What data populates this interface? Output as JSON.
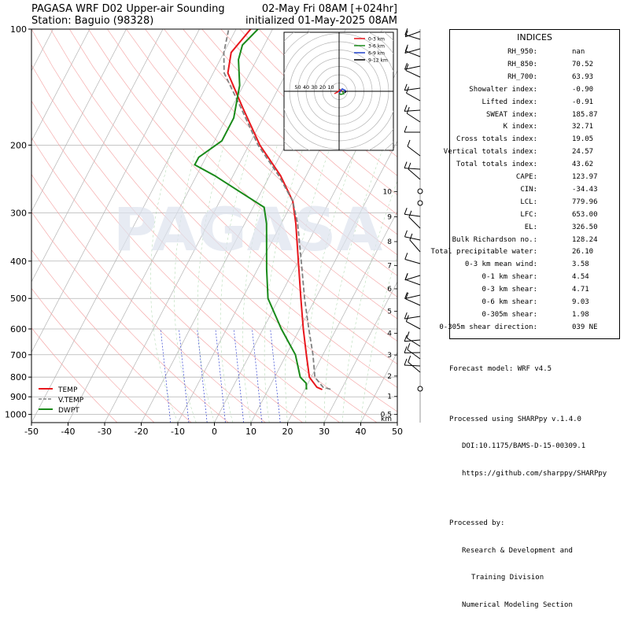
{
  "header": {
    "title_line1": "PAGASA WRF D02 Upper-air Sounding",
    "title_line2": "Station: Baguio (98328)",
    "valid_line1": "02-May Fri 08AM [+024hr]",
    "valid_line2": "initialized 01-May-2025 08AM"
  },
  "watermark": "PAGASA",
  "chart_data": {
    "type": "line",
    "xlabel": "",
    "ylabel": "",
    "x_ticks": [
      "-50",
      "-40",
      "-30",
      "-20",
      "-10",
      "0",
      "10",
      "20",
      "30",
      "40",
      "50"
    ],
    "y_ticks": [
      "100",
      "200",
      "300",
      "400",
      "500",
      "600",
      "700",
      "800",
      "900",
      "1000"
    ],
    "xlim": [
      -50,
      50
    ],
    "ylim": [
      1050,
      100
    ],
    "y_scale": "log",
    "legend": {
      "position": "bottom-left",
      "entries": [
        "TEMP",
        "V.TEMP",
        "DWPT"
      ]
    },
    "grid": true,
    "series": [
      {
        "name": "TEMP",
        "color": "#e8171d",
        "points": [
          [
            24.8,
            862
          ],
          [
            23,
            850
          ],
          [
            19.5,
            800
          ],
          [
            15.5,
            700
          ],
          [
            11,
            600
          ],
          [
            6,
            500
          ],
          [
            0,
            400
          ],
          [
            -6,
            320
          ],
          [
            -10,
            280
          ],
          [
            -17,
            240
          ],
          [
            -27,
            200
          ],
          [
            -37,
            160
          ],
          [
            -46,
            130
          ],
          [
            -48,
            115
          ],
          [
            -46,
            100
          ]
        ]
      },
      {
        "name": "V.TEMP",
        "color": "#808080",
        "points": [
          [
            27,
            860
          ],
          [
            24.7,
            850
          ],
          [
            21,
            800
          ],
          [
            17.3,
            700
          ],
          [
            12.5,
            600
          ],
          [
            7,
            500
          ],
          [
            0.8,
            400
          ],
          [
            -5.5,
            320
          ],
          [
            -10,
            280
          ],
          [
            -17.5,
            240
          ],
          [
            -27.5,
            200
          ],
          [
            -37.5,
            160
          ],
          [
            -47,
            130
          ],
          [
            -50,
            115
          ],
          [
            -52,
            100
          ]
        ]
      },
      {
        "name": "DWPT",
        "color": "#1a8a1a",
        "points": [
          [
            20.5,
            862
          ],
          [
            19.5,
            830
          ],
          [
            17,
            800
          ],
          [
            12.5,
            700
          ],
          [
            5,
            600
          ],
          [
            -3,
            500
          ],
          [
            -7.5,
            420
          ],
          [
            -14,
            320
          ],
          [
            -17,
            290
          ],
          [
            -35,
            240
          ],
          [
            -42,
            225
          ],
          [
            -42,
            215
          ],
          [
            -40,
            205
          ],
          [
            -38,
            195
          ],
          [
            -38,
            170
          ],
          [
            -41,
            140
          ],
          [
            -45,
            120
          ],
          [
            -46,
            110
          ],
          [
            -44,
            100
          ]
        ]
      }
    ],
    "height_axis": {
      "label": "km",
      "ticks": [
        "0.5",
        "1",
        "2",
        "3",
        "4",
        "5",
        "6",
        "7",
        "8",
        "9",
        "10"
      ]
    },
    "hodograph": {
      "rings": [
        "50",
        "40",
        "30",
        "20",
        "10"
      ],
      "legend": [
        {
          "label": "0-3 km",
          "color": "#e8171d"
        },
        {
          "label": "3-6 km",
          "color": "#1a8a1a"
        },
        {
          "label": "6-9 km",
          "color": "#2040c8"
        },
        {
          "label": "9-12 km",
          "color": "#000000"
        }
      ]
    }
  },
  "indices": {
    "title": "INDICES",
    "rows": [
      {
        "label": "RH_950:",
        "value": "nan"
      },
      {
        "label": "RH_850:",
        "value": "70.52"
      },
      {
        "label": "RH_700:",
        "value": "63.93"
      },
      {
        "label": "Showalter index:",
        "value": "-0.90"
      },
      {
        "label": "Lifted index:",
        "value": "-0.91"
      },
      {
        "label": "SWEAT index:",
        "value": "185.87"
      },
      {
        "label": "K index:",
        "value": "32.71"
      },
      {
        "label": "Cross totals index:",
        "value": "19.05"
      },
      {
        "label": "Vertical totals index:",
        "value": "24.57"
      },
      {
        "label": "Total totals index:",
        "value": "43.62"
      },
      {
        "label": "CAPE:",
        "value": "123.97"
      },
      {
        "label": "CIN:",
        "value": "-34.43"
      },
      {
        "label": "LCL:",
        "value": "779.96"
      },
      {
        "label": "LFC:",
        "value": "653.00"
      },
      {
        "label": "EL:",
        "value": "326.50"
      },
      {
        "label": "Bulk Richardson no.:",
        "value": "128.24"
      },
      {
        "label": "Total precipitable water:",
        "value": "26.10"
      },
      {
        "label": "0-3 km mean wind:",
        "value": "3.58"
      },
      {
        "label": "0-1 km shear:",
        "value": "4.54"
      },
      {
        "label": "0-3 km shear:",
        "value": "4.71"
      },
      {
        "label": "0-6 km shear:",
        "value": "9.03"
      },
      {
        "label": "0-305m shear:",
        "value": "1.98"
      },
      {
        "label": "0-305m shear direction:",
        "value": "039 NE"
      }
    ]
  },
  "footer": {
    "model": "Forecast model: WRF v4.5",
    "processed_using": "Processed using SHARPpy v.1.4.0",
    "doi": "DOI:10.1175/BAMS-D-15-00309.1",
    "github": "https://github.com/sharppy/SHARPpy",
    "processed_by": "Processed by:",
    "division_line1": "Research & Development and",
    "division_line2": "Training Division",
    "section": "Numerical Modeling Section"
  }
}
